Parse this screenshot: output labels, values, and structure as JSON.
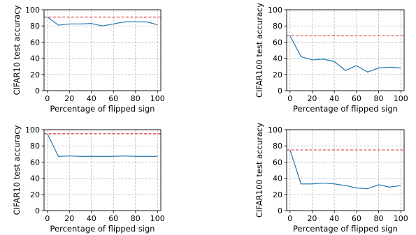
{
  "chart_data": [
    {
      "type": "line",
      "xlabel": "Percentage of flipped sign",
      "ylabel": "CIFAR10 test accuracy",
      "xlim": [
        -3,
        103
      ],
      "ylim": [
        0,
        100
      ],
      "xticks": [
        0,
        20,
        40,
        60,
        80,
        100
      ],
      "yticks": [
        0,
        20,
        40,
        60,
        80,
        100
      ],
      "grid": true,
      "series": [
        {
          "x": [
            0,
            10,
            20,
            30,
            40,
            50,
            60,
            70,
            80,
            90,
            100
          ],
          "values": [
            91,
            81,
            82.5,
            82.5,
            83,
            80,
            82.5,
            85,
            85,
            85,
            81.5
          ],
          "color": "#1f77b4"
        }
      ],
      "reference_line": {
        "y": 91,
        "color": "#d62728",
        "style": "dashed"
      }
    },
    {
      "type": "line",
      "xlabel": "Percentage of flipped sign",
      "ylabel": "CIFAR100 test accuracy",
      "xlim": [
        -3,
        103
      ],
      "ylim": [
        0,
        100
      ],
      "xticks": [
        0,
        20,
        40,
        60,
        80,
        100
      ],
      "yticks": [
        0,
        20,
        40,
        60,
        80,
        100
      ],
      "grid": true,
      "series": [
        {
          "x": [
            0,
            10,
            20,
            30,
            40,
            50,
            60,
            70,
            80,
            90,
            100
          ],
          "values": [
            68,
            42,
            38,
            39,
            36,
            25,
            31,
            23,
            28,
            29,
            28
          ],
          "color": "#1f77b4"
        }
      ],
      "reference_line": {
        "y": 68,
        "color": "#d62728",
        "style": "dashed"
      }
    },
    {
      "type": "line",
      "xlabel": "Percentage of flipped sign",
      "ylabel": "CIFAR10 test accuracy",
      "xlim": [
        -3,
        103
      ],
      "ylim": [
        0,
        100
      ],
      "xticks": [
        0,
        20,
        40,
        60,
        80,
        100
      ],
      "yticks": [
        0,
        20,
        40,
        60,
        80,
        100
      ],
      "grid": true,
      "series": [
        {
          "x": [
            0,
            10,
            20,
            30,
            40,
            50,
            60,
            70,
            80,
            90,
            100
          ],
          "values": [
            95,
            67,
            67.5,
            67,
            67,
            67,
            67,
            67.5,
            67,
            67,
            67
          ],
          "color": "#1f77b4"
        }
      ],
      "reference_line": {
        "y": 95,
        "color": "#d62728",
        "style": "dashed"
      }
    },
    {
      "type": "line",
      "xlabel": "Percentage of flipped sign",
      "ylabel": "CIFAR100 test accuracy",
      "xlim": [
        -3,
        103
      ],
      "ylim": [
        0,
        100
      ],
      "xticks": [
        0,
        20,
        40,
        60,
        80,
        100
      ],
      "yticks": [
        0,
        20,
        40,
        60,
        80,
        100
      ],
      "grid": true,
      "series": [
        {
          "x": [
            0,
            10,
            20,
            30,
            40,
            50,
            60,
            70,
            80,
            90,
            100
          ],
          "values": [
            75,
            33,
            33,
            34,
            33,
            31,
            28,
            27,
            32,
            29,
            31
          ],
          "color": "#1f77b4"
        }
      ],
      "reference_line": {
        "y": 75,
        "color": "#d62728",
        "style": "dashed"
      }
    }
  ]
}
